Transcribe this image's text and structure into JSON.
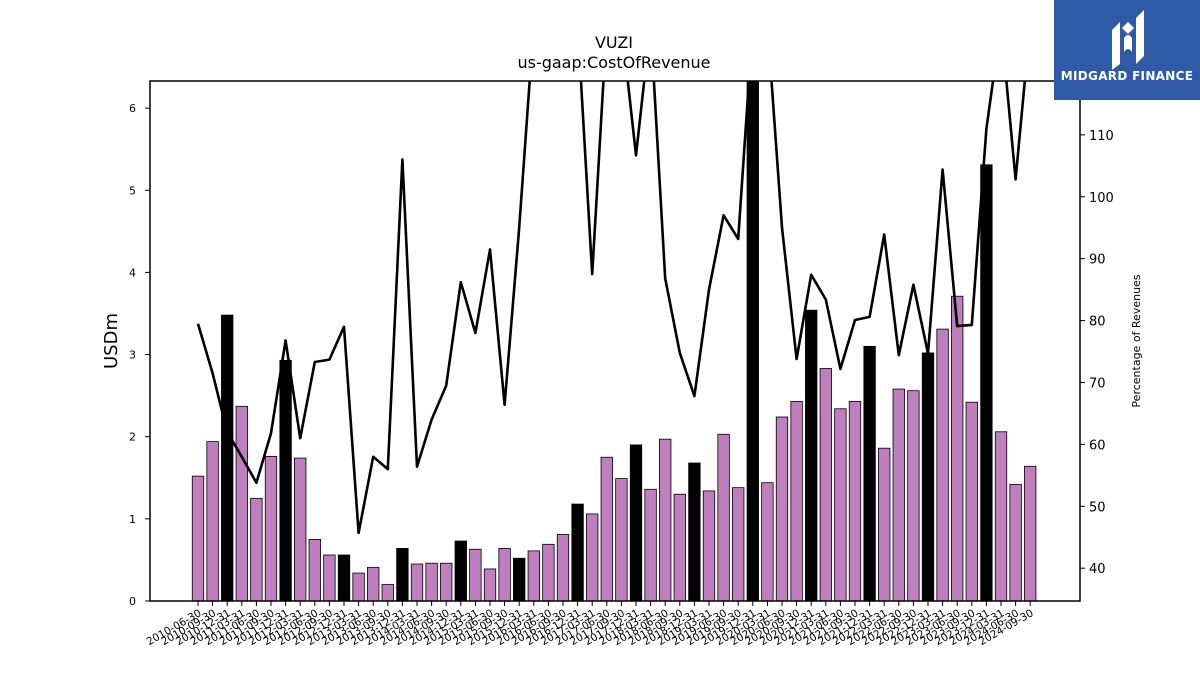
{
  "logo": {
    "text": "MIDGARD FINANCE",
    "icon": "midgard-logo-icon",
    "background": "#2f5aa8"
  },
  "chart_data": {
    "type": "bar",
    "title": "VUZI",
    "subtitle": "us-gaap:CostOfRevenue",
    "ylabel": "USDm",
    "y2label": "Percentage of Revenues",
    "ylim": [
      0,
      6.33
    ],
    "y2lim": [
      34.7,
      118.7
    ],
    "yticks": [
      0,
      1,
      2,
      3,
      4,
      5,
      6
    ],
    "y2ticks": [
      40,
      50,
      60,
      70,
      80,
      90,
      100,
      110
    ],
    "grid": false,
    "colors": {
      "quarter_bar": "#bf7fbf",
      "annual_bar": "#000000",
      "line": "#000000"
    },
    "categories": [
      "2010-06-30",
      "2010-09-30",
      "2010-12-31",
      "2011-03-31",
      "2011-06-30",
      "2011-09-30",
      "2011-12-31",
      "2012-03-31",
      "2012-06-30",
      "2012-09-30",
      "2012-12-31",
      "2013-03-31",
      "2013-06-30",
      "2013-09-30",
      "2013-12-31",
      "2014-03-31",
      "2014-06-30",
      "2014-09-30",
      "2014-12-31",
      "2015-03-31",
      "2015-06-30",
      "2015-09-30",
      "2015-12-31",
      "2016-03-31",
      "2016-06-30",
      "2016-09-30",
      "2016-12-31",
      "2017-03-31",
      "2017-06-30",
      "2017-09-30",
      "2017-12-31",
      "2018-03-31",
      "2018-06-30",
      "2018-09-30",
      "2018-12-31",
      "2019-03-31",
      "2019-06-30",
      "2019-09-30",
      "2019-12-31",
      "2020-03-31",
      "2020-06-30",
      "2020-09-30",
      "2020-12-31",
      "2021-03-31",
      "2021-06-30",
      "2021-09-30",
      "2021-12-31",
      "2022-03-31",
      "2022-06-30",
      "2022-09-30",
      "2022-12-31",
      "2023-03-31",
      "2023-06-30",
      "2023-09-30",
      "2023-12-31",
      "2024-03-31",
      "2024-06-30",
      "2024-09-30"
    ],
    "x_tick_labels": [
      "2010-06-30",
      "2010-09-30",
      "2010-12-31",
      "2011-03-31",
      "2011-06-30",
      "2011-09-30",
      "2011-12-31",
      "2012-03-31",
      "2012-06-30",
      "2012-09-30",
      "2012-12-31",
      "2013-03-31",
      "2013-06-30",
      "2013-09-30",
      "2013-12-31",
      "2014-03-31",
      "2014-06-30",
      "2014-09-30",
      "2014-12-31",
      "2015-03-31",
      "2015-06-30",
      "2015-09-30",
      "2015-12-31",
      "2016-03-31",
      "2016-06-30",
      "2016-09-30",
      "2016-12-31",
      "2017-03-31",
      "2017-06-30",
      "2017-09-30",
      "2017-12-31",
      "2018-03-31",
      "2018-06-30",
      "2018-09-30",
      "2018-12-31",
      "2019-03-31",
      "2019-06-30",
      "2019-09-30",
      "2019-12-31",
      "2020-03-31",
      "2020-06-30",
      "2020-09-30",
      "2020-12-31",
      "2021-03-31",
      "2021-06-30",
      "2021-09-30",
      "2021-12-31",
      "2022-03-31",
      "2022-06-30",
      "2022-09-30",
      "2022-12-31",
      "2023-03-31",
      "2023-06-30",
      "2023-09-30",
      "2023-12-31",
      "2024-03-31",
      "2024-06-30",
      "2024-09-30"
    ],
    "bar_values": [
      1.52,
      1.94,
      3.48,
      2.37,
      1.25,
      1.76,
      2.93,
      1.74,
      0.75,
      0.56,
      0.56,
      0.34,
      0.41,
      0.2,
      0.64,
      0.45,
      0.46,
      0.46,
      0.73,
      0.63,
      0.39,
      0.64,
      0.52,
      0.61,
      0.69,
      0.81,
      1.18,
      1.06,
      1.75,
      1.49,
      1.9,
      1.36,
      1.97,
      1.3,
      1.68,
      1.34,
      2.03,
      1.38,
      6.5,
      1.44,
      2.24,
      2.43,
      3.54,
      2.83,
      2.34,
      2.43,
      3.1,
      1.86,
      2.58,
      2.56,
      3.02,
      3.31,
      3.71,
      2.42,
      5.31,
      2.06,
      1.42,
      1.64
    ],
    "bar_is_annual": [
      false,
      false,
      true,
      false,
      false,
      false,
      true,
      false,
      false,
      false,
      true,
      false,
      false,
      false,
      true,
      false,
      false,
      false,
      true,
      false,
      false,
      false,
      true,
      false,
      false,
      false,
      true,
      false,
      false,
      false,
      true,
      false,
      false,
      false,
      true,
      false,
      false,
      false,
      true,
      false,
      false,
      false,
      true,
      false,
      false,
      false,
      true,
      false,
      false,
      false,
      true,
      false,
      false,
      false,
      true,
      false,
      false,
      false
    ],
    "line_values_pct": [
      79.5,
      71.5,
      62,
      58,
      53.8,
      61.8,
      76.8,
      61,
      73.3,
      73.7,
      79,
      45.7,
      58,
      56,
      106,
      56.4,
      64,
      69.5,
      86.2,
      78,
      91.5,
      66.4,
      95,
      128,
      128,
      128,
      128,
      87.5,
      128,
      128,
      106.7,
      128,
      86.8,
      74.8,
      67.8,
      85,
      97,
      93.2,
      128,
      128,
      95,
      73.8,
      87.4,
      83.4,
      72.2,
      80.1,
      80.6,
      93.9,
      74.4,
      85.8,
      74.7,
      104.4,
      79.1,
      79.3,
      111,
      128,
      102.8,
      128
    ]
  }
}
